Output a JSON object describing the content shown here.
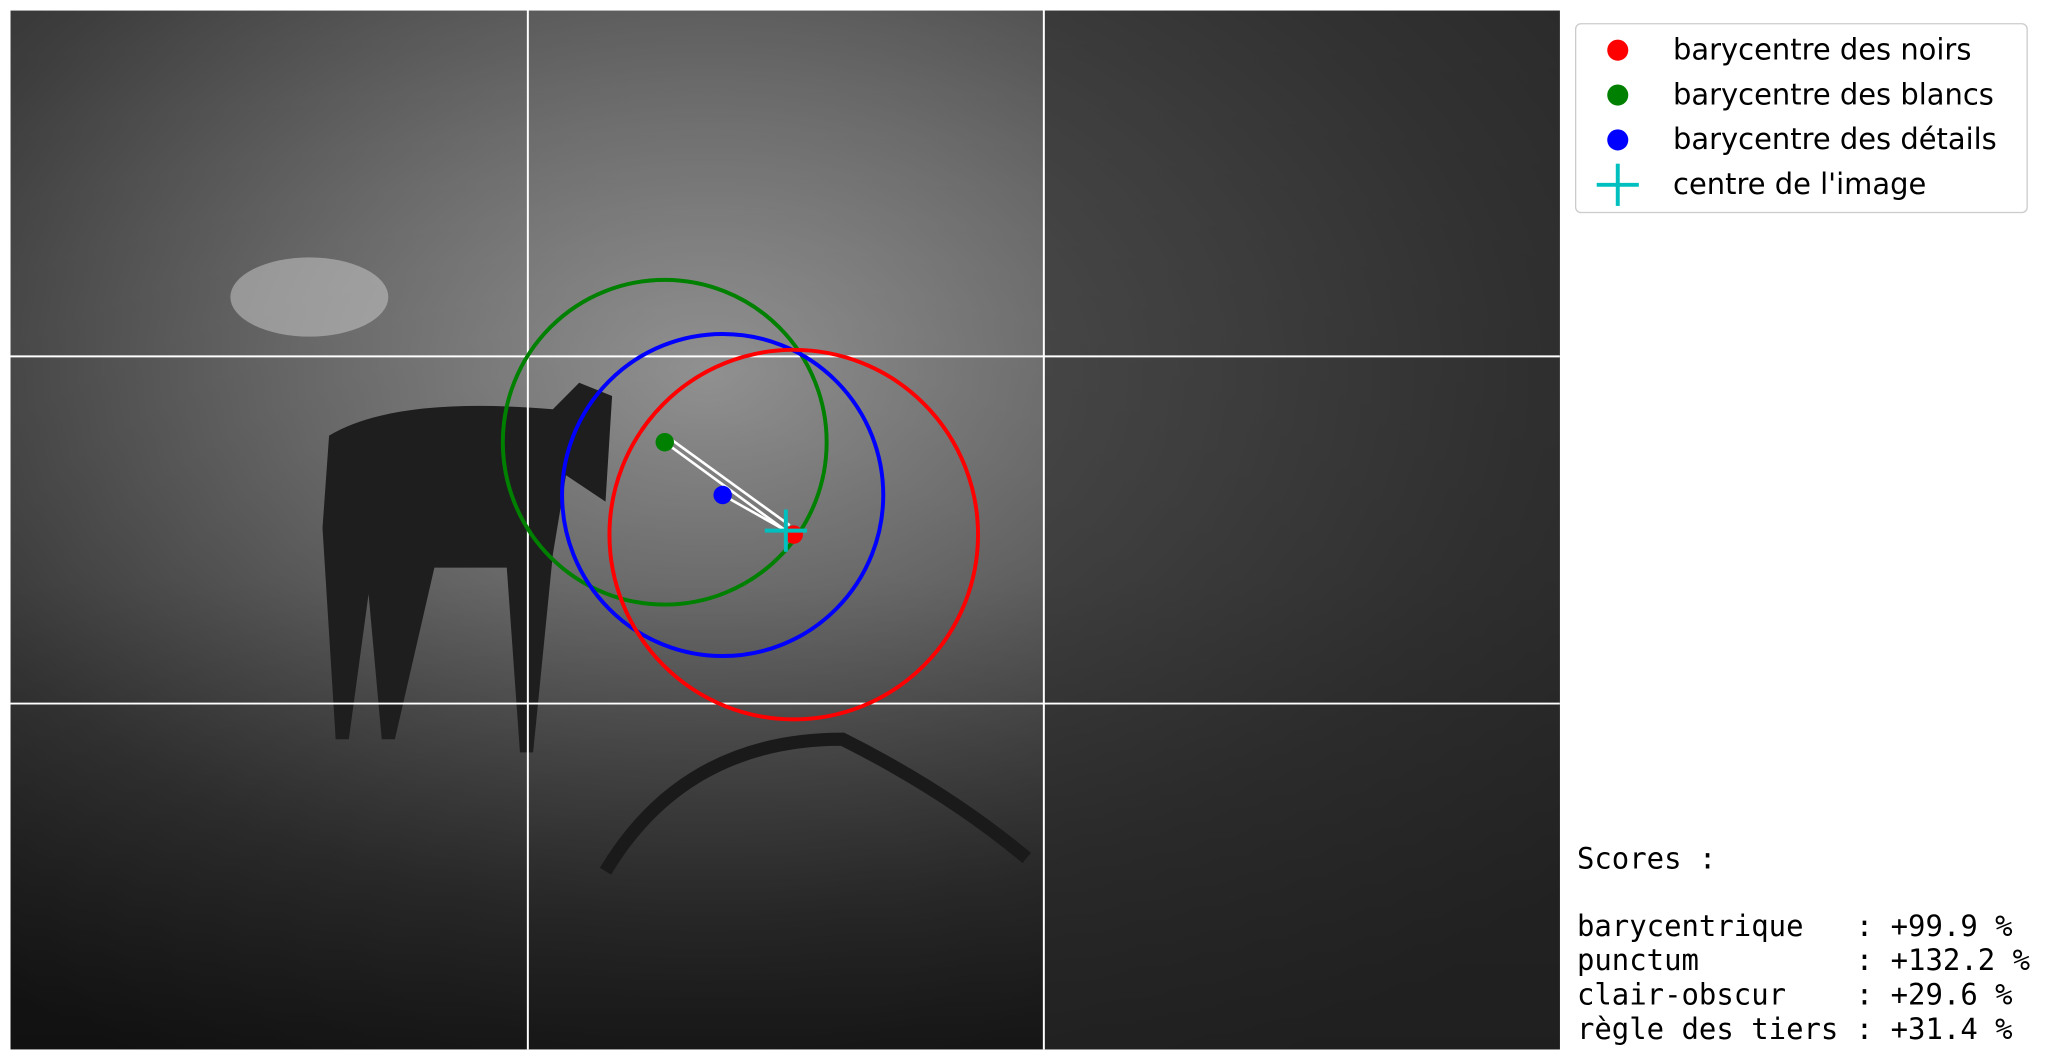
{
  "legend": {
    "items": [
      "barycentre des noirs",
      "barycentre des blancs",
      "barycentre des détails",
      "centre de l'image"
    ]
  },
  "scores": {
    "title": "Scores :",
    "lines": [
      "barycentrique   : +99.9 %",
      "punctum         : +132.2 %",
      "clair-obscur    : +29.6 %",
      "règle des tiers : +31.4 %"
    ]
  }
}
